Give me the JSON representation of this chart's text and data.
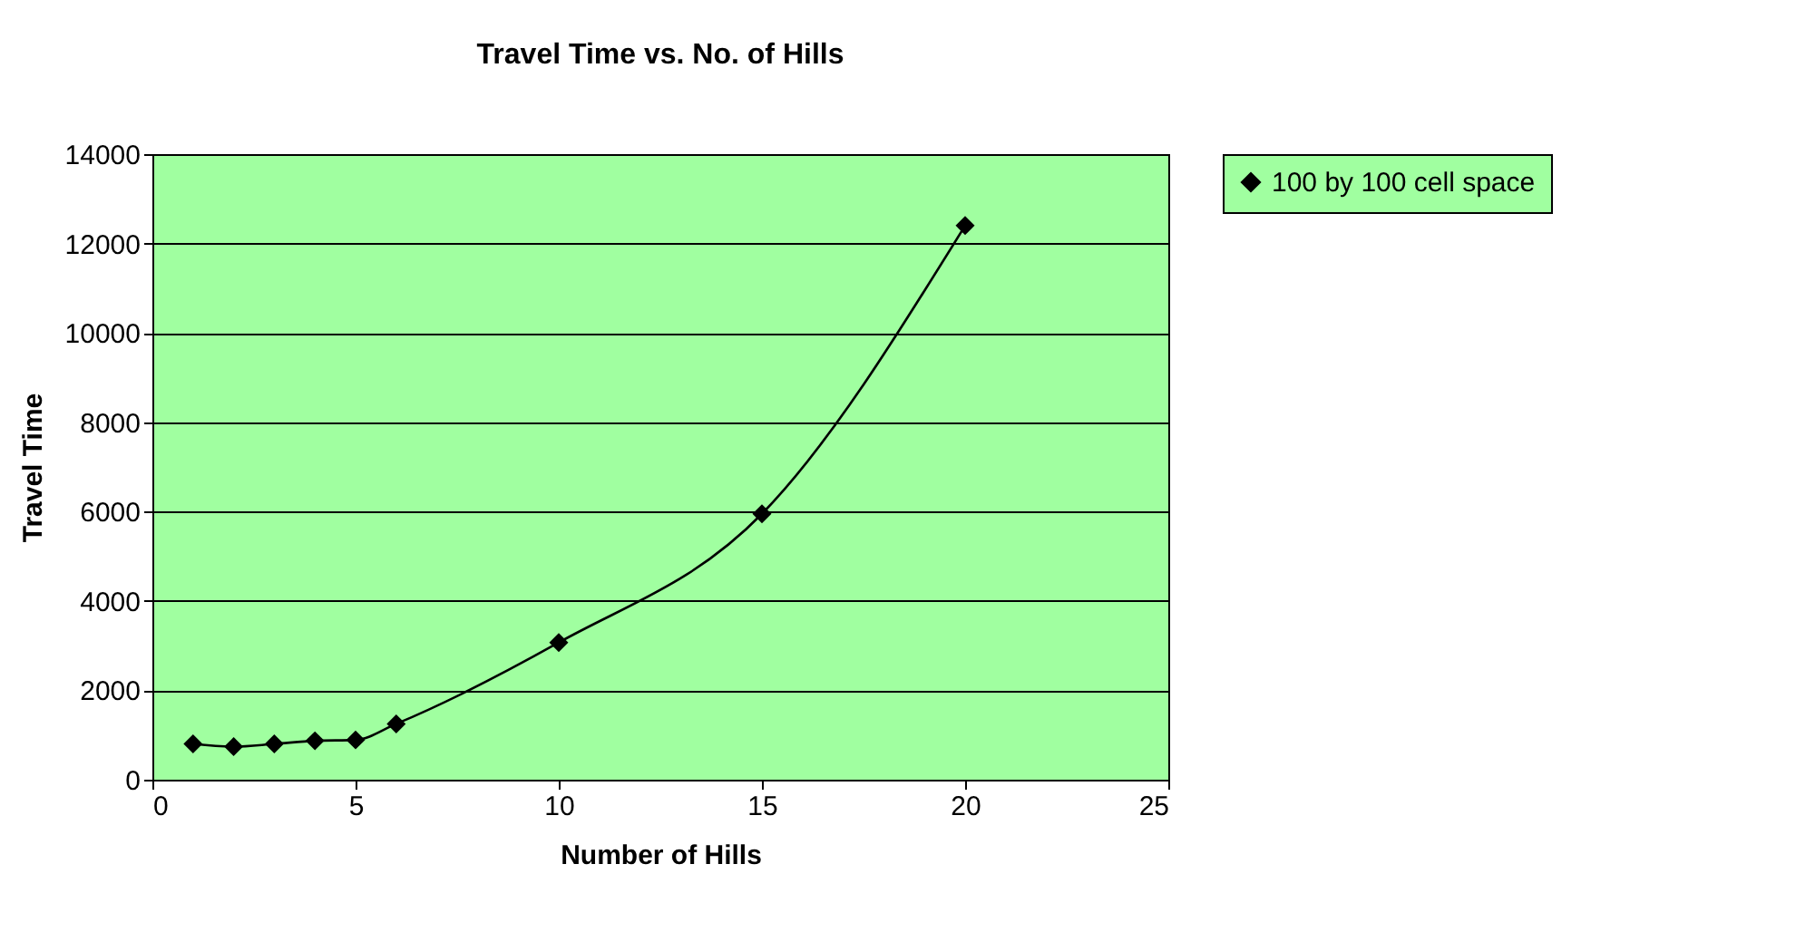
{
  "chart_data": {
    "type": "line",
    "title": "Travel Time vs. No. of Hills",
    "xlabel": "Number of Hills",
    "ylabel": "Travel Time",
    "x": [
      1,
      2,
      3,
      4,
      5,
      6,
      10,
      15,
      20
    ],
    "series": [
      {
        "name": "100 by 100 cell space",
        "color": "#000000",
        "values": [
          800,
          740,
          800,
          870,
          890,
          1250,
          3070,
          5950,
          12400
        ]
      }
    ],
    "xlim": [
      0,
      25
    ],
    "xticks": [
      0,
      5,
      10,
      15,
      20,
      25
    ],
    "ylim": [
      0,
      14000
    ],
    "yticks": [
      0,
      2000,
      4000,
      6000,
      8000,
      10000,
      12000,
      14000
    ],
    "grid": "y",
    "legend": "right",
    "marker": "diamond",
    "line_style": "solid"
  }
}
